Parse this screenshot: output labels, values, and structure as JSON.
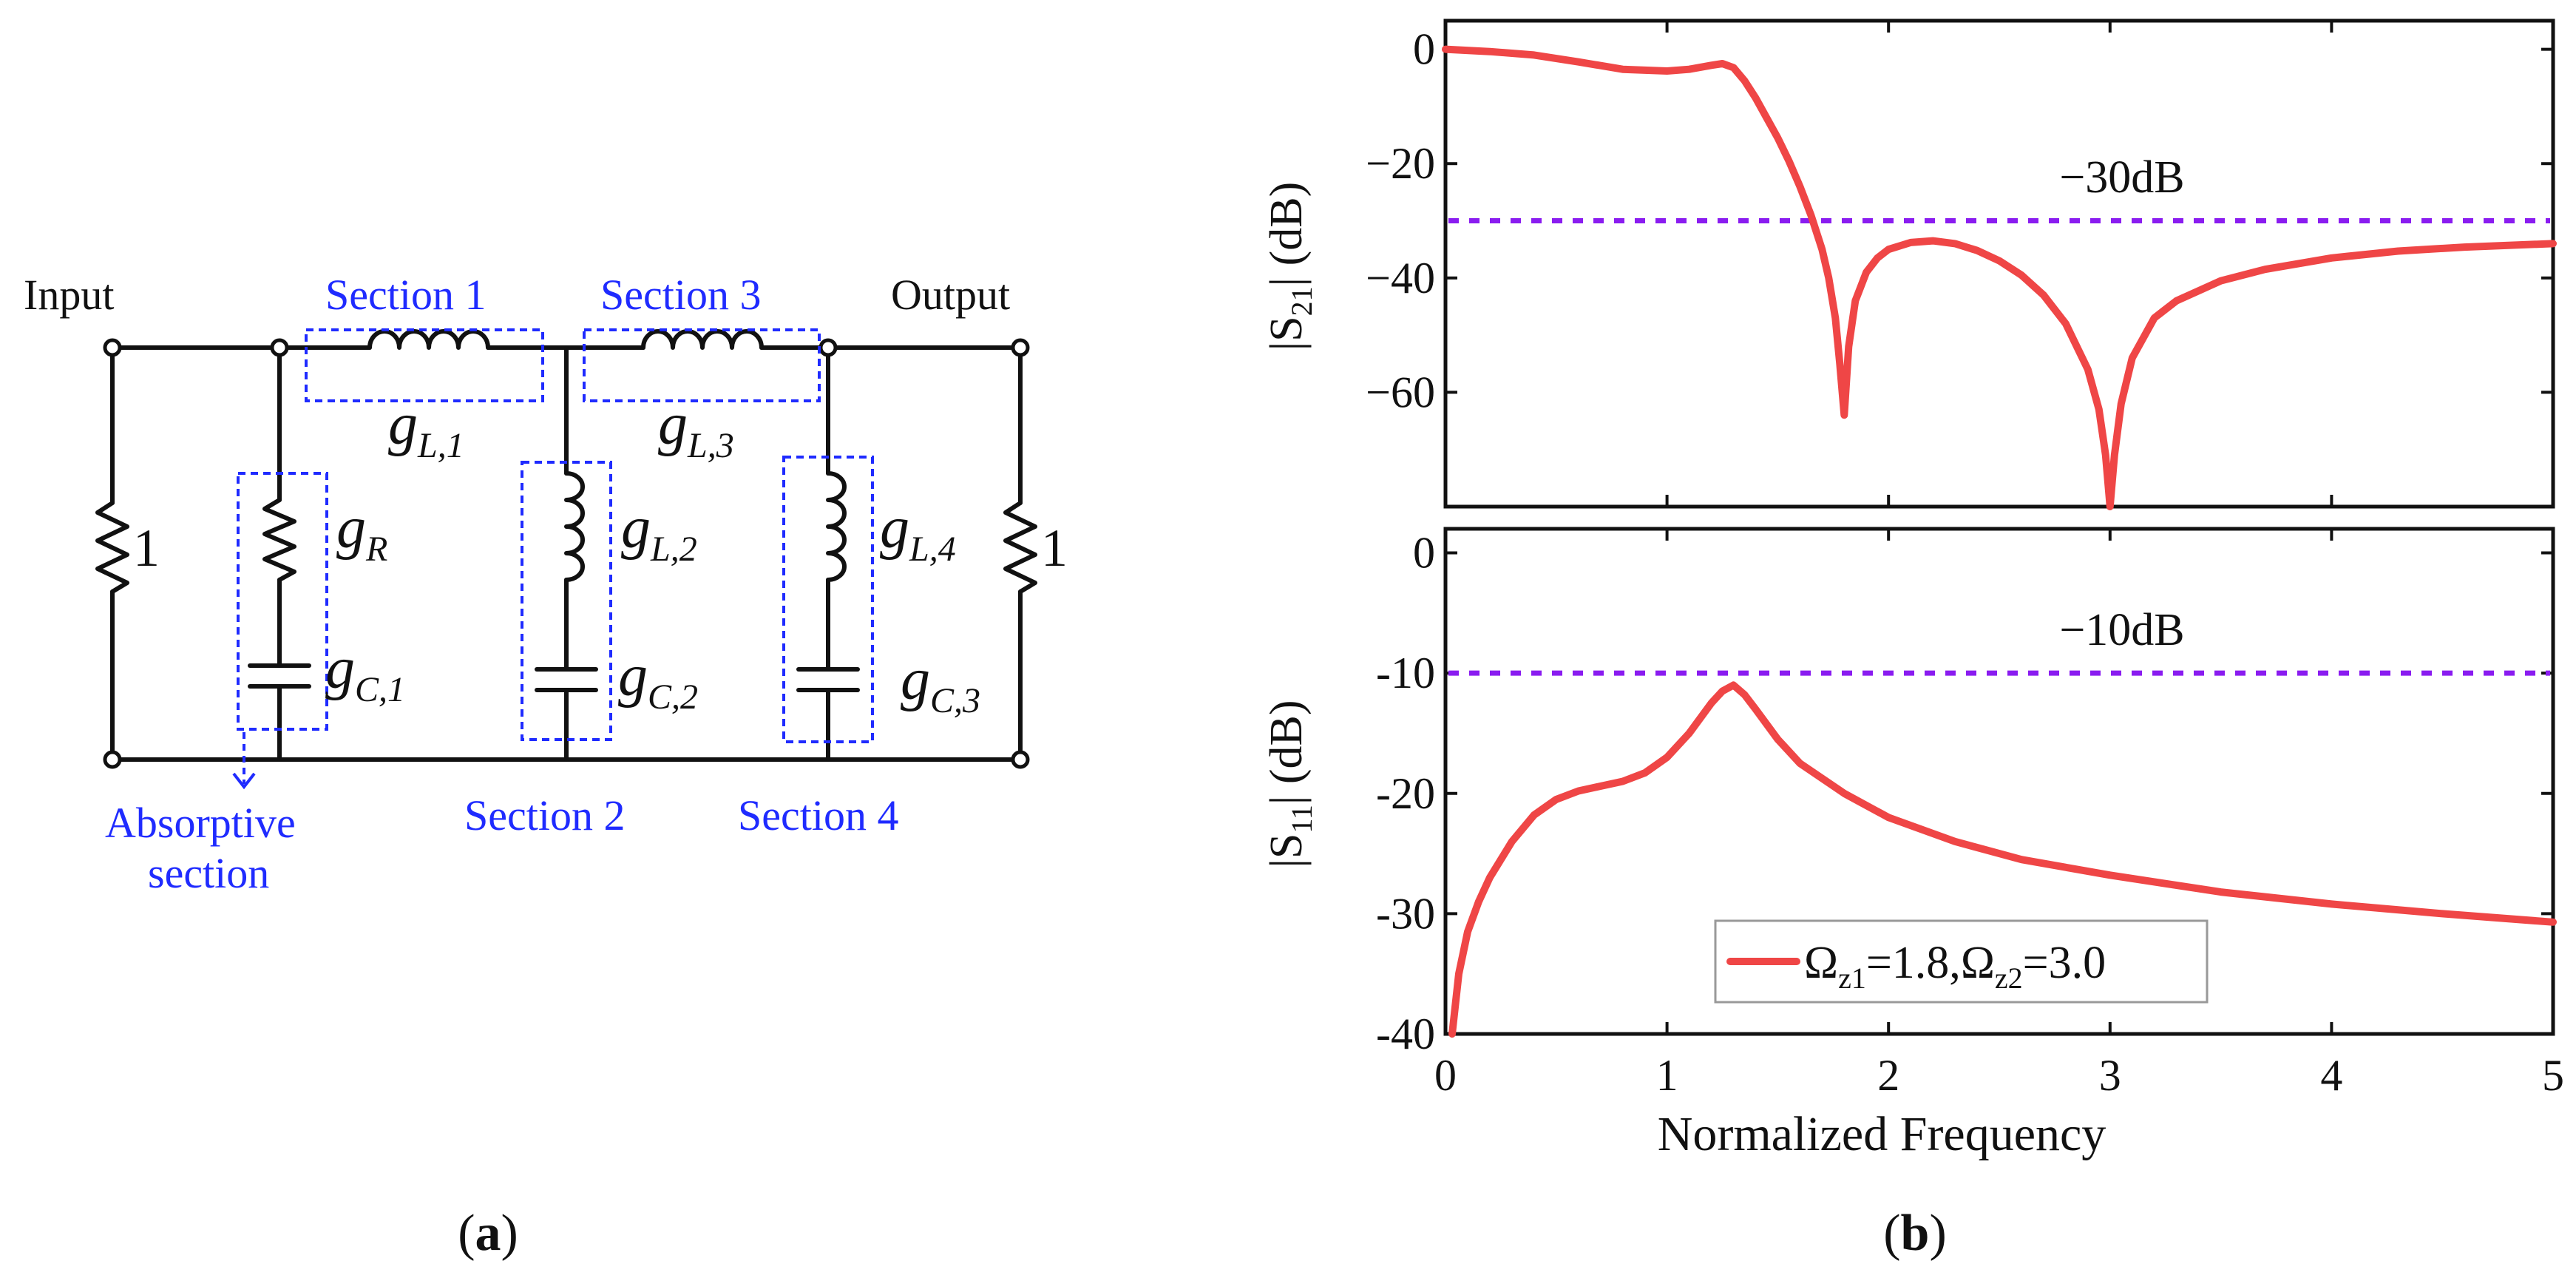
{
  "colors": {
    "section_label": "#1f2bff",
    "wire": "#111111",
    "curve": "#ef4646",
    "threshold": "#8a1cf0"
  },
  "circuit": {
    "input_label": "Input",
    "output_label": "Output",
    "source_resistance": "1",
    "load_resistance": "1",
    "section1_label": "Section 1",
    "section2_label": "Section 2",
    "section3_label": "Section 3",
    "section4_label": "Section 4",
    "absorptive_line1": "Absorptive",
    "absorptive_line2": "section",
    "g_main": "g",
    "sub_L1": "L,1",
    "sub_L2": "L,2",
    "sub_L3": "L,3",
    "sub_L4": "L,4",
    "sub_R": "R",
    "sub_C1": "C,1",
    "sub_C2": "C,2",
    "sub_C3": "C,3"
  },
  "caption": {
    "a": "(a)",
    "b": "(b)"
  },
  "chart_data": [
    {
      "type": "line",
      "name": "S21",
      "ylabel_main": "|S",
      "ylabel_sub": "21",
      "ylabel_unit": "| (dB)",
      "xlim": [
        0,
        5
      ],
      "ylim": [
        -80,
        5
      ],
      "yticks": [
        0,
        -20,
        -40,
        -60
      ],
      "ytick_labels": [
        "0",
        "−20",
        "−40",
        "−60"
      ],
      "xticks": [
        0,
        1,
        2,
        3,
        4,
        5
      ],
      "threshold": -30,
      "threshold_label": "−30dB",
      "series": [
        {
          "name": "Ωz1=1.8,Ωz2=3.0",
          "x": [
            0,
            0.2,
            0.4,
            0.6,
            0.8,
            1.0,
            1.1,
            1.2,
            1.25,
            1.3,
            1.35,
            1.4,
            1.45,
            1.5,
            1.55,
            1.6,
            1.65,
            1.7,
            1.73,
            1.76,
            1.78,
            1.8,
            1.82,
            1.85,
            1.9,
            1.95,
            2.0,
            2.1,
            2.2,
            2.3,
            2.4,
            2.5,
            2.6,
            2.7,
            2.8,
            2.9,
            2.95,
            2.98,
            3.0,
            3.02,
            3.05,
            3.1,
            3.2,
            3.3,
            3.5,
            3.7,
            4.0,
            4.3,
            4.6,
            5.0
          ],
          "y": [
            0,
            -0.4,
            -1.0,
            -2.2,
            -3.5,
            -3.8,
            -3.5,
            -2.8,
            -2.5,
            -3.2,
            -5.5,
            -8.5,
            -12,
            -15.5,
            -19.5,
            -24,
            -29,
            -35,
            -40,
            -47,
            -55,
            -64,
            -52,
            -44,
            -39,
            -36.5,
            -35,
            -33.8,
            -33.5,
            -34,
            -35.2,
            -37,
            -39.5,
            -43,
            -48,
            -56,
            -63,
            -71,
            -80,
            -71,
            -62,
            -54,
            -47,
            -44,
            -40.5,
            -38.5,
            -36.5,
            -35.3,
            -34.6,
            -34
          ]
        }
      ]
    },
    {
      "type": "line",
      "name": "S11",
      "ylabel_main": "|S",
      "ylabel_sub": "11",
      "ylabel_unit": "| (dB)",
      "xlabel": "Normalized Frequency",
      "xlim": [
        0,
        5
      ],
      "ylim": [
        -40,
        2
      ],
      "yticks": [
        0,
        -10,
        -20,
        -30,
        -40
      ],
      "ytick_labels": [
        "0",
        "-10",
        "-20",
        "-30",
        "-40"
      ],
      "xticks": [
        0,
        1,
        2,
        3,
        4,
        5
      ],
      "xtick_labels": [
        "0",
        "1",
        "2",
        "3",
        "4",
        "5"
      ],
      "threshold": -10,
      "threshold_label": "−10dB",
      "legend": {
        "label_main1": "Ω",
        "label_sub1": "z1",
        "label_mid": "=1.8,",
        "label_main2": "Ω",
        "label_sub2": "z2",
        "label_end": "=3.0",
        "placement": "bottom-center"
      },
      "series": [
        {
          "name": "Ωz1=1.8,Ωz2=3.0",
          "x": [
            0.03,
            0.06,
            0.1,
            0.15,
            0.2,
            0.3,
            0.4,
            0.5,
            0.6,
            0.7,
            0.8,
            0.9,
            1.0,
            1.1,
            1.2,
            1.25,
            1.3,
            1.35,
            1.4,
            1.5,
            1.6,
            1.8,
            2.0,
            2.3,
            2.6,
            3.0,
            3.5,
            4.0,
            4.5,
            5.0
          ],
          "y": [
            -40,
            -35,
            -31.5,
            -29,
            -27,
            -24,
            -21.8,
            -20.5,
            -19.8,
            -19.4,
            -19,
            -18.3,
            -17,
            -15,
            -12.5,
            -11.5,
            -11,
            -11.8,
            -13,
            -15.5,
            -17.5,
            -20,
            -22,
            -24,
            -25.5,
            -26.8,
            -28.2,
            -29.2,
            -30,
            -30.7
          ]
        }
      ]
    }
  ]
}
